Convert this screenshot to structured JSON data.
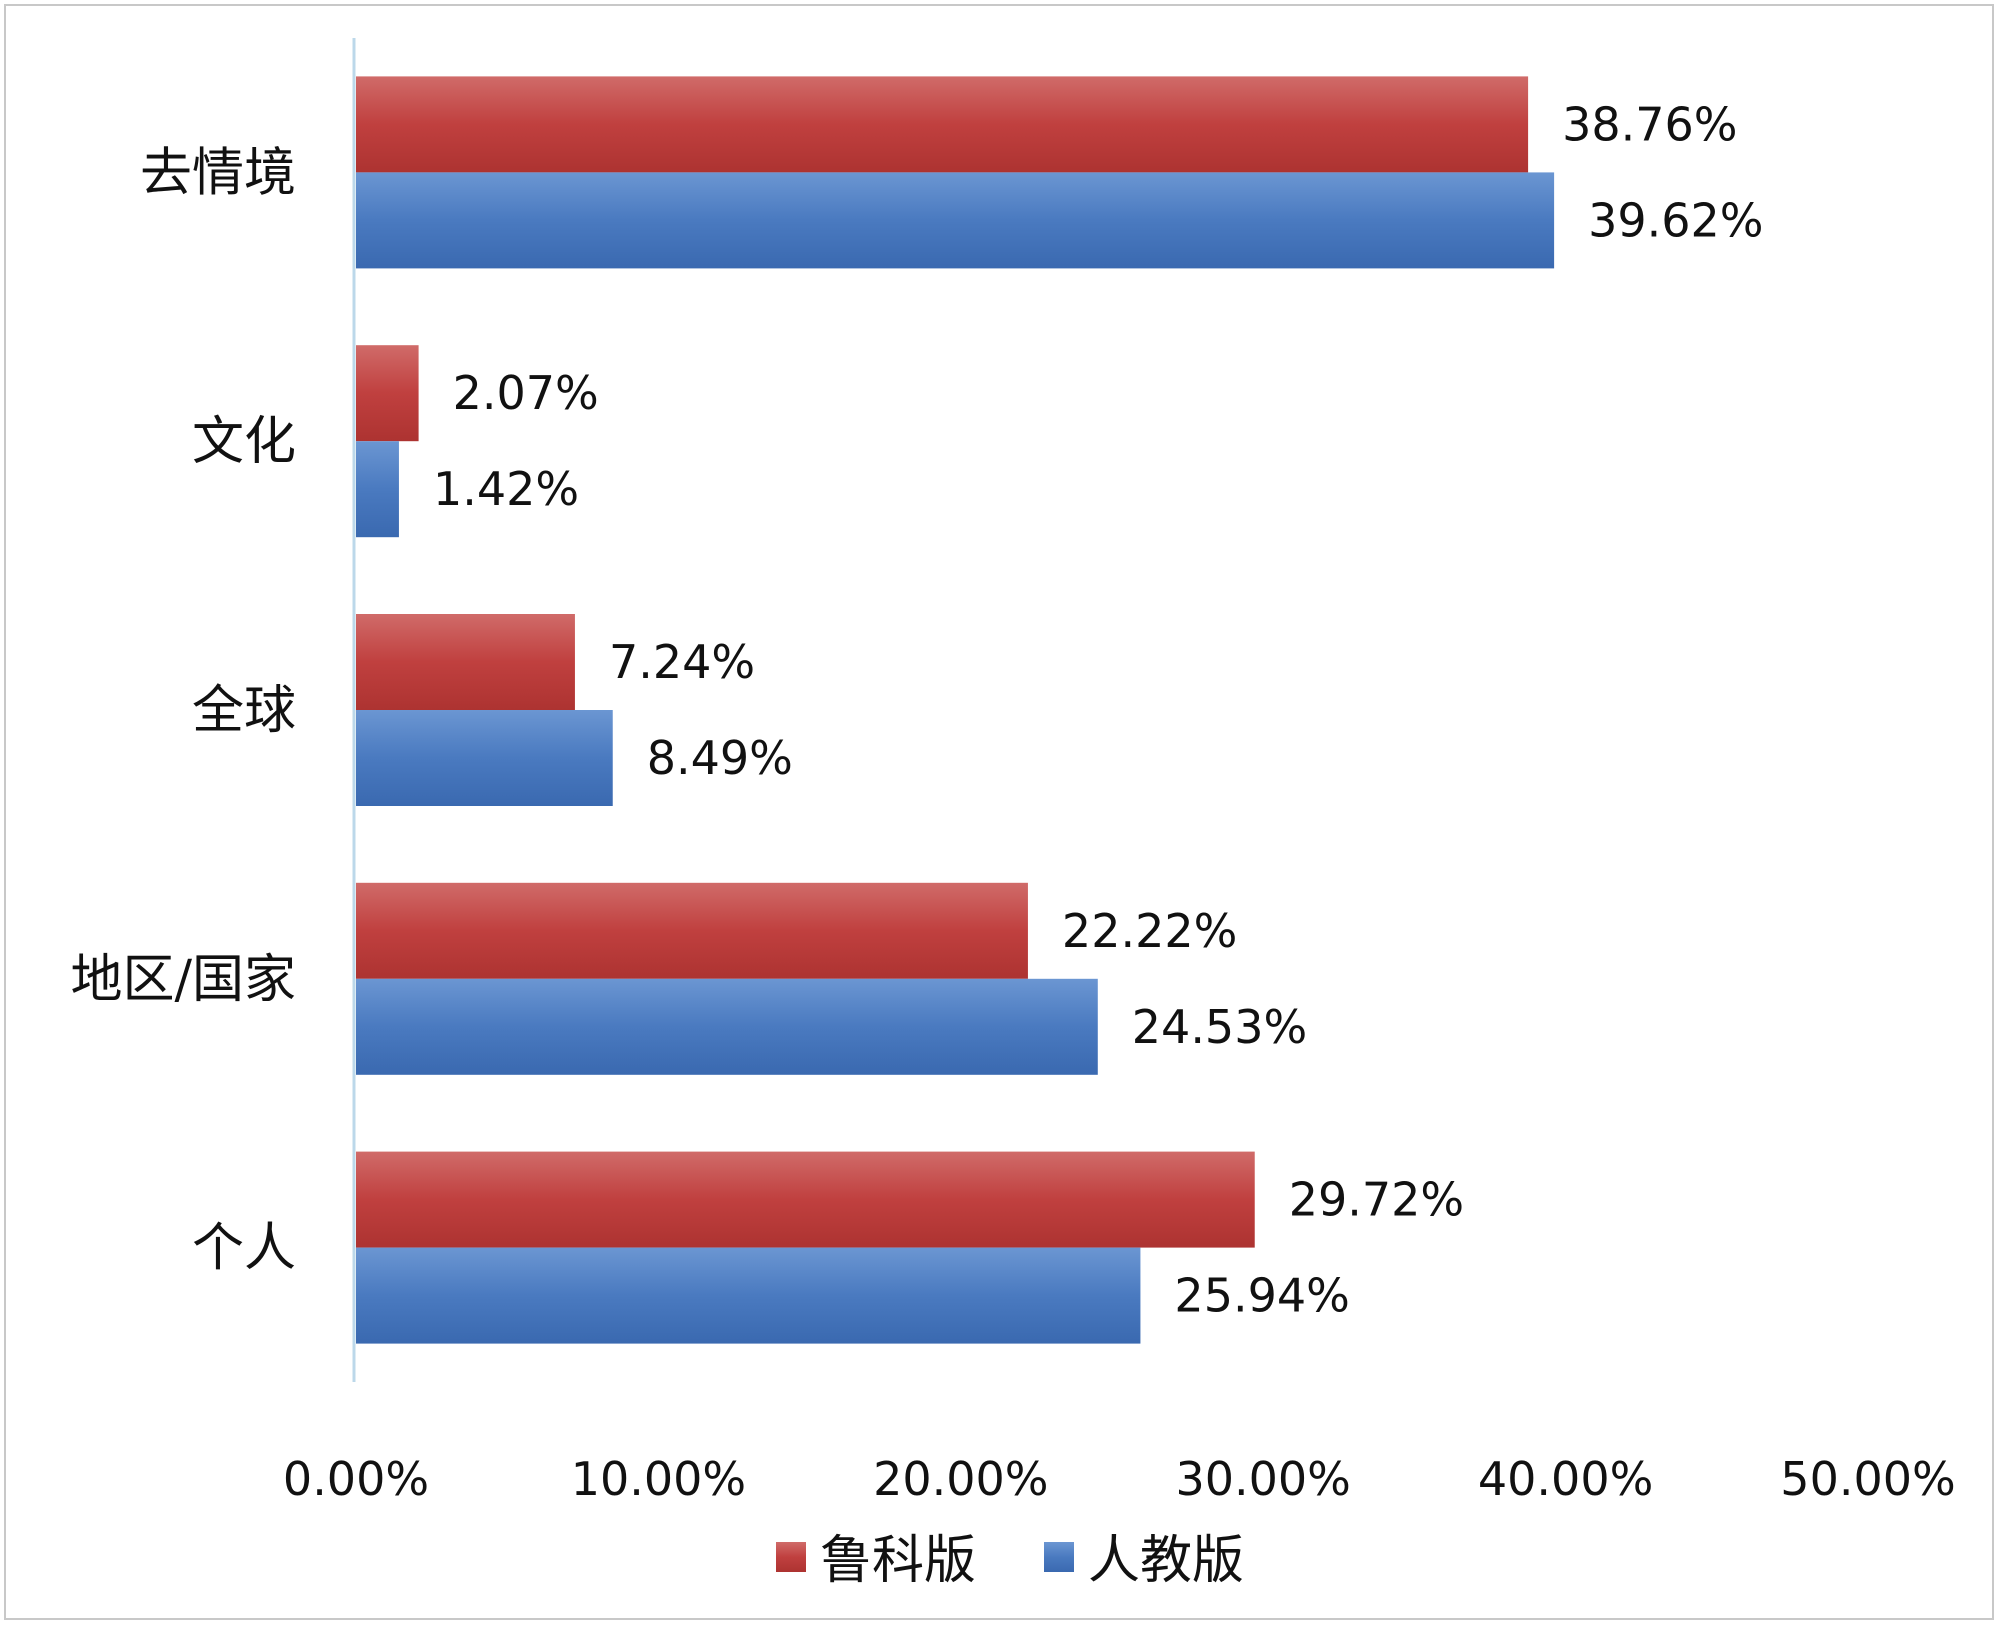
{
  "chart_data": {
    "type": "bar",
    "orientation": "horizontal",
    "categories": [
      "去情境",
      "文化",
      "全球",
      "地区/国家",
      "个人"
    ],
    "series": [
      {
        "name": "鲁科版",
        "values": [
          38.76,
          2.07,
          7.24,
          22.22,
          29.72
        ],
        "labels": [
          "38.76%",
          "2.07%",
          "7.24%",
          "22.22%",
          "29.72%"
        ],
        "color": "#c0403f"
      },
      {
        "name": "人教版",
        "values": [
          39.62,
          1.42,
          8.49,
          24.53,
          25.94
        ],
        "labels": [
          "39.62%",
          "1.42%",
          "8.49%",
          "24.53%",
          "25.94%"
        ],
        "color": "#4a7ac0"
      }
    ],
    "xlim": [
      0,
      50
    ],
    "x_ticks": [
      "0.00%",
      "10.00%",
      "20.00%",
      "30.00%",
      "40.00%",
      "50.00%"
    ],
    "grid": false,
    "legend_position": "bottom",
    "title": "",
    "xlabel": "",
    "ylabel": ""
  }
}
